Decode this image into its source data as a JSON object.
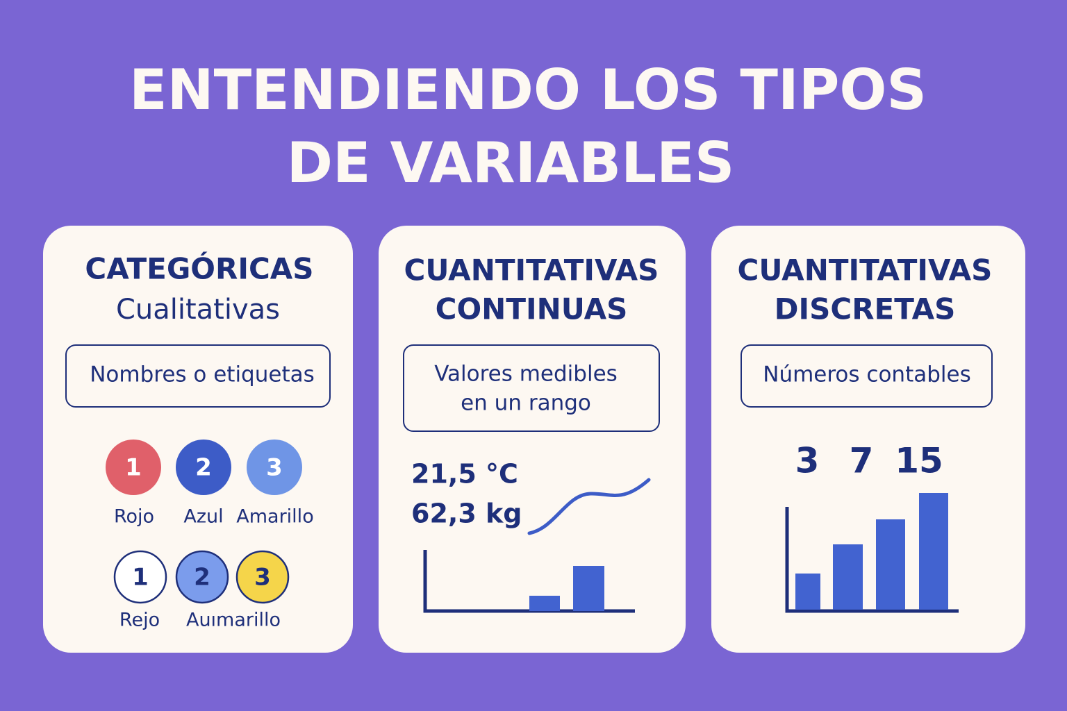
{
  "title": {
    "lines": [
      "ENTENDIENDO LOS TIPOS",
      "DE VARIABLES"
    ]
  },
  "cards": [
    {
      "heading": [
        "CATEGÓRICAS"
      ],
      "subheading": "Cualitativas",
      "box": [
        "Nombres o etiquetas"
      ],
      "circles_row1": [
        "1",
        "2",
        "3"
      ],
      "labels_row1": [
        "Rojo",
        "Azul",
        "Amarillo"
      ],
      "circles_row2": [
        "1",
        "2",
        "3"
      ],
      "labels_row2": [
        "Rejo",
        "Auımarillo"
      ]
    },
    {
      "heading": [
        "CUANTITATIVAS",
        "CONTINUAS"
      ],
      "box": [
        "Valores medibles",
        "en un rango"
      ],
      "examples": [
        "21,5 °C",
        "62,3 kg"
      ]
    },
    {
      "heading": [
        "CUANTITATIVAS",
        "DISCRETAS"
      ],
      "box": [
        "Números contables"
      ],
      "numbers": [
        "3",
        "7",
        "15"
      ]
    }
  ]
}
